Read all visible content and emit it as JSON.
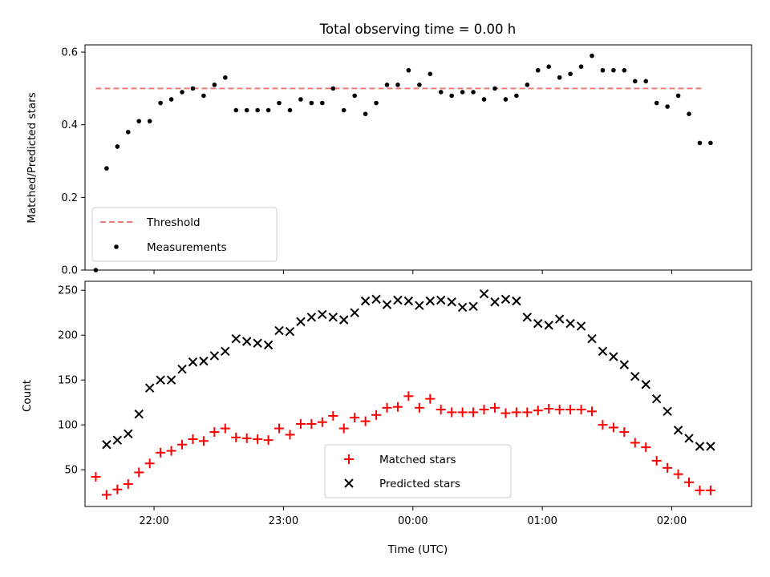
{
  "chart_data": [
    {
      "type": "scatter",
      "title": "Total observing time = 0.00 h",
      "xlabel": "",
      "ylabel": "Matched/Predicted stars",
      "ylim": [
        0,
        0.62
      ],
      "yticks": [
        0.0,
        0.2,
        0.4,
        0.6
      ],
      "ytick_labels": [
        "0.0",
        "0.2",
        "0.4",
        "0.6"
      ],
      "x_range_minutes": [
        -152,
        157
      ],
      "legend_position": "lower-left",
      "threshold": {
        "name": "Threshold",
        "value": 0.5,
        "color": "#f07b78",
        "style": "dashed",
        "x_start": -147,
        "x_end": 135
      },
      "series": [
        {
          "name": "Measurements",
          "color": "#000000",
          "marker": "dot",
          "x": [
            -147,
            -142,
            -137,
            -132,
            -127,
            -122,
            -117,
            -112,
            -107,
            -102,
            -97,
            -92,
            -87,
            -82,
            -77,
            -72,
            -67,
            -62,
            -57,
            -52,
            -47,
            -42,
            -37,
            -32,
            -27,
            -22,
            -17,
            -12,
            -7,
            -2,
            3,
            8,
            13,
            18,
            23,
            28,
            33,
            38,
            43,
            48,
            53,
            58,
            63,
            68,
            73,
            78,
            83,
            88,
            93,
            98,
            103,
            108,
            113,
            118,
            123,
            128,
            133,
            138
          ],
          "values": [
            0.0,
            0.28,
            0.34,
            0.38,
            0.41,
            0.41,
            0.46,
            0.47,
            0.49,
            0.5,
            0.48,
            0.51,
            0.53,
            0.44,
            0.44,
            0.44,
            0.44,
            0.46,
            0.44,
            0.47,
            0.46,
            0.46,
            0.5,
            0.44,
            0.48,
            0.43,
            0.46,
            0.51,
            0.51,
            0.55,
            0.51,
            0.54,
            0.49,
            0.48,
            0.49,
            0.49,
            0.47,
            0.5,
            0.47,
            0.48,
            0.51,
            0.55,
            0.56,
            0.53,
            0.54,
            0.56,
            0.59,
            0.55,
            0.55,
            0.55,
            0.52,
            0.52,
            0.46,
            0.45,
            0.48,
            0.43,
            0.35,
            0.35
          ]
        }
      ]
    },
    {
      "type": "scatter",
      "title": "",
      "xlabel": "Time (UTC)",
      "ylabel": "Count",
      "ylim": [
        9,
        260
      ],
      "yticks": [
        50,
        100,
        150,
        200,
        250
      ],
      "ytick_labels": [
        "50",
        "100",
        "150",
        "200",
        "250"
      ],
      "x_range_minutes": [
        -152,
        157
      ],
      "xticks_minutes": [
        -120,
        -60,
        0,
        60,
        120
      ],
      "xtick_labels": [
        "22:00",
        "23:00",
        "00:00",
        "01:00",
        "02:00"
      ],
      "legend_position": "lower-center",
      "series": [
        {
          "name": "Matched stars",
          "color": "#ff0000",
          "marker": "plus",
          "x": [
            -147,
            -142,
            -137,
            -132,
            -127,
            -122,
            -117,
            -112,
            -107,
            -102,
            -97,
            -92,
            -87,
            -82,
            -77,
            -72,
            -67,
            -62,
            -57,
            -52,
            -47,
            -42,
            -37,
            -32,
            -27,
            -22,
            -17,
            -12,
            -7,
            -2,
            3,
            8,
            13,
            18,
            23,
            28,
            33,
            38,
            43,
            48,
            53,
            58,
            63,
            68,
            73,
            78,
            83,
            88,
            93,
            98,
            103,
            108,
            113,
            118,
            123,
            128,
            133,
            138
          ],
          "values": [
            42,
            22,
            28,
            34,
            47,
            57,
            69,
            71,
            78,
            84,
            82,
            92,
            96,
            86,
            85,
            84,
            83,
            96,
            89,
            101,
            101,
            103,
            110,
            96,
            108,
            104,
            111,
            119,
            120,
            132,
            119,
            129,
            117,
            114,
            114,
            114,
            117,
            119,
            113,
            114,
            114,
            116,
            118,
            117,
            117,
            117,
            115,
            100,
            97,
            92,
            80,
            75,
            60,
            52,
            45,
            36,
            27,
            27
          ]
        },
        {
          "name": "Predicted stars",
          "color": "#000000",
          "marker": "x",
          "x": [
            -142,
            -137,
            -132,
            -127,
            -122,
            -117,
            -112,
            -107,
            -102,
            -97,
            -92,
            -87,
            -82,
            -77,
            -72,
            -67,
            -62,
            -57,
            -52,
            -47,
            -42,
            -37,
            -32,
            -27,
            -22,
            -17,
            -12,
            -7,
            -2,
            3,
            8,
            13,
            18,
            23,
            28,
            33,
            38,
            43,
            48,
            53,
            58,
            63,
            68,
            73,
            78,
            83,
            88,
            93,
            98,
            103,
            108,
            113,
            118,
            123,
            128,
            133,
            138
          ],
          "values": [
            78,
            83,
            90,
            112,
            141,
            150,
            150,
            162,
            170,
            171,
            177,
            182,
            196,
            193,
            191,
            189,
            205,
            204,
            215,
            220,
            223,
            220,
            217,
            225,
            238,
            240,
            234,
            239,
            238,
            233,
            238,
            239,
            237,
            231,
            232,
            246,
            237,
            240,
            238,
            220,
            213,
            211,
            218,
            213,
            210,
            196,
            182,
            176,
            167,
            154,
            145,
            129,
            115,
            94,
            85,
            76,
            76
          ]
        }
      ]
    }
  ]
}
